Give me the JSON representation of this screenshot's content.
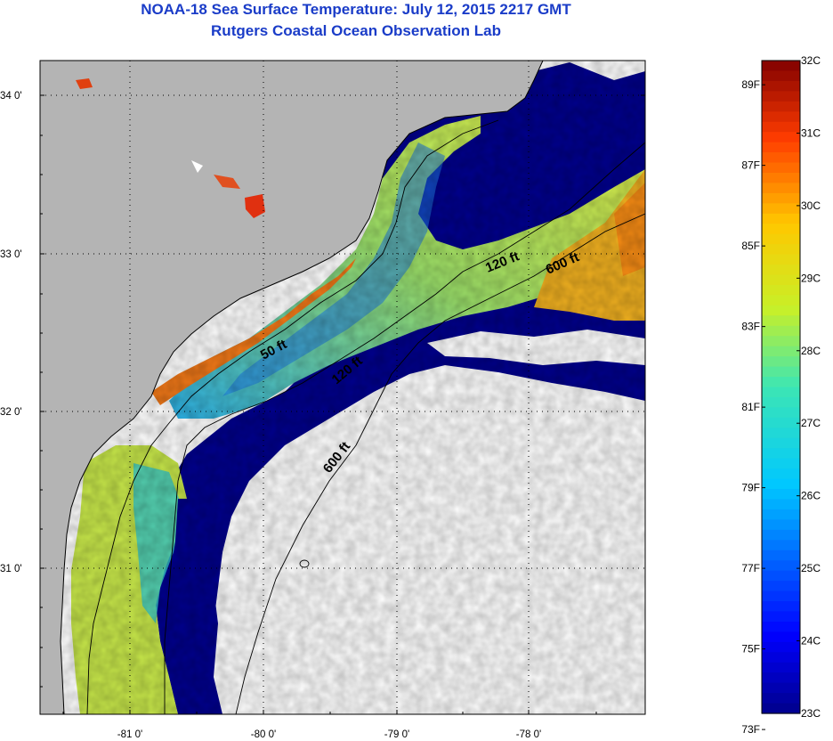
{
  "header": {
    "title": "NOAA-18 Sea Surface Temperature:  July 12, 2015 2217 GMT",
    "subtitle": "Rutgers Coastal Ocean Observation Lab"
  },
  "map": {
    "lat_ticks": [
      "34 0'",
      "33 0'",
      "32 0'",
      "31 0'"
    ],
    "lon_ticks": [
      "-81 0'",
      "-80 0'",
      "-79 0'",
      "-78 0'"
    ],
    "contour_labels": [
      "50 ft",
      "120 ft",
      "120 ft",
      "600 ft",
      "600 ft"
    ],
    "colors": {
      "land": "#b4b4b4",
      "no_data": "#ffffff",
      "cold": "#00008c",
      "warm": "#8c0000"
    }
  },
  "colorbar": {
    "fahrenheit": [
      "89F",
      "87F",
      "85F",
      "83F",
      "81F",
      "79F",
      "77F",
      "75F",
      "73F"
    ],
    "celsius": [
      "32C",
      "31C",
      "30C",
      "29C",
      "28C",
      "27C",
      "26C",
      "25C",
      "24C",
      "23C"
    ],
    "range_c": [
      23,
      32
    ]
  }
}
